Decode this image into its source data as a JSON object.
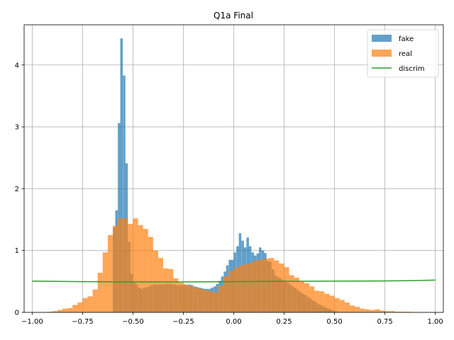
{
  "chart_data": {
    "type": "bar",
    "title": "Q1a Final",
    "xlabel": "",
    "ylabel": "",
    "xlim": [
      -1.04,
      1.04
    ],
    "ylim": [
      0,
      4.65
    ],
    "grid": true,
    "legend_position": "top-right",
    "xticks": [
      {
        "value": -1.0,
        "label": "−1.00"
      },
      {
        "value": -0.75,
        "label": "−0.75"
      },
      {
        "value": -0.5,
        "label": "−0.50"
      },
      {
        "value": -0.25,
        "label": "−0.25"
      },
      {
        "value": 0.0,
        "label": "0.00"
      },
      {
        "value": 0.25,
        "label": "0.25"
      },
      {
        "value": 0.5,
        "label": "0.50"
      },
      {
        "value": 0.75,
        "label": "0.75"
      },
      {
        "value": 1.0,
        "label": "1.00"
      }
    ],
    "yticks": [
      {
        "value": 0,
        "label": "0"
      },
      {
        "value": 1,
        "label": "1"
      },
      {
        "value": 2,
        "label": "2"
      },
      {
        "value": 3,
        "label": "3"
      },
      {
        "value": 4,
        "label": "4"
      }
    ],
    "series": [
      {
        "name": "fake",
        "kind": "histogram",
        "color": "#1f77b4",
        "opacity": 0.7,
        "bin_width": 0.0125,
        "bins": [
          [
            -0.6,
            1.37
          ],
          [
            -0.588,
            1.65
          ],
          [
            -0.575,
            3.06
          ],
          [
            -0.563,
            4.43
          ],
          [
            -0.55,
            3.83
          ],
          [
            -0.538,
            2.41
          ],
          [
            -0.525,
            1.14
          ],
          [
            -0.513,
            0.62
          ],
          [
            -0.5,
            0.5
          ],
          [
            -0.488,
            0.45
          ],
          [
            -0.475,
            0.4
          ],
          [
            -0.463,
            0.38
          ],
          [
            -0.45,
            0.4
          ],
          [
            -0.438,
            0.41
          ],
          [
            -0.425,
            0.42
          ],
          [
            -0.413,
            0.44
          ],
          [
            -0.4,
            0.45
          ],
          [
            -0.388,
            0.45
          ],
          [
            -0.375,
            0.45
          ],
          [
            -0.363,
            0.45
          ],
          [
            -0.35,
            0.45
          ],
          [
            -0.338,
            0.46
          ],
          [
            -0.325,
            0.46
          ],
          [
            -0.313,
            0.45
          ],
          [
            -0.3,
            0.45
          ],
          [
            -0.288,
            0.44
          ],
          [
            -0.275,
            0.44
          ],
          [
            -0.263,
            0.44
          ],
          [
            -0.25,
            0.45
          ],
          [
            -0.238,
            0.44
          ],
          [
            -0.225,
            0.45
          ],
          [
            -0.213,
            0.44
          ],
          [
            -0.2,
            0.42
          ],
          [
            -0.188,
            0.41
          ],
          [
            -0.175,
            0.4
          ],
          [
            -0.163,
            0.39
          ],
          [
            -0.15,
            0.38
          ],
          [
            -0.138,
            0.38
          ],
          [
            -0.125,
            0.38
          ],
          [
            -0.113,
            0.4
          ],
          [
            -0.1,
            0.42
          ],
          [
            -0.088,
            0.46
          ],
          [
            -0.075,
            0.51
          ],
          [
            -0.063,
            0.58
          ],
          [
            -0.05,
            0.66
          ],
          [
            -0.038,
            0.76
          ],
          [
            -0.025,
            0.85
          ],
          [
            -0.013,
            0.85
          ],
          [
            0.0,
            0.97
          ],
          [
            0.013,
            1.07
          ],
          [
            0.025,
            1.28
          ],
          [
            0.038,
            1.16
          ],
          [
            0.05,
            1.05
          ],
          [
            0.063,
            1.21
          ],
          [
            0.075,
            1.07
          ],
          [
            0.088,
            0.97
          ],
          [
            0.1,
            0.92
          ],
          [
            0.113,
            0.95
          ],
          [
            0.125,
            1.05
          ],
          [
            0.138,
            1.0
          ],
          [
            0.15,
            0.96
          ],
          [
            0.163,
            0.83
          ],
          [
            0.175,
            0.82
          ],
          [
            0.188,
            0.7
          ],
          [
            0.2,
            0.6
          ],
          [
            0.213,
            0.57
          ],
          [
            0.225,
            0.55
          ],
          [
            0.238,
            0.52
          ],
          [
            0.25,
            0.5
          ],
          [
            0.263,
            0.48
          ],
          [
            0.275,
            0.45
          ],
          [
            0.288,
            0.42
          ],
          [
            0.3,
            0.39
          ],
          [
            0.313,
            0.36
          ],
          [
            0.325,
            0.33
          ],
          [
            0.338,
            0.3
          ],
          [
            0.35,
            0.28
          ],
          [
            0.363,
            0.25
          ],
          [
            0.375,
            0.22
          ],
          [
            0.388,
            0.19
          ],
          [
            0.4,
            0.17
          ],
          [
            0.413,
            0.14
          ],
          [
            0.425,
            0.12
          ],
          [
            0.438,
            0.1
          ],
          [
            0.45,
            0.08
          ],
          [
            0.463,
            0.06
          ],
          [
            0.475,
            0.05
          ],
          [
            0.488,
            0.03
          ],
          [
            0.5,
            0.02
          ]
        ]
      },
      {
        "name": "real",
        "kind": "histogram",
        "color": "#ff7f0e",
        "opacity": 0.7,
        "bin_width": 0.025,
        "bins": [
          [
            -0.925,
            0.01
          ],
          [
            -0.9,
            0.02
          ],
          [
            -0.875,
            0.04
          ],
          [
            -0.85,
            0.06
          ],
          [
            -0.825,
            0.07
          ],
          [
            -0.8,
            0.12
          ],
          [
            -0.775,
            0.16
          ],
          [
            -0.75,
            0.23
          ],
          [
            -0.725,
            0.26
          ],
          [
            -0.7,
            0.37
          ],
          [
            -0.675,
            0.64
          ],
          [
            -0.65,
            0.97
          ],
          [
            -0.625,
            1.25
          ],
          [
            -0.6,
            1.4
          ],
          [
            -0.575,
            1.52
          ],
          [
            -0.55,
            1.52
          ],
          [
            -0.525,
            1.43
          ],
          [
            -0.5,
            1.52
          ],
          [
            -0.475,
            1.41
          ],
          [
            -0.45,
            1.35
          ],
          [
            -0.425,
            1.22
          ],
          [
            -0.4,
            1.0
          ],
          [
            -0.375,
            0.88
          ],
          [
            -0.35,
            0.71
          ],
          [
            -0.325,
            0.7
          ],
          [
            -0.3,
            0.55
          ],
          [
            -0.275,
            0.48
          ],
          [
            -0.25,
            0.45
          ],
          [
            -0.225,
            0.43
          ],
          [
            -0.2,
            0.4
          ],
          [
            -0.175,
            0.38
          ],
          [
            -0.15,
            0.36
          ],
          [
            -0.125,
            0.34
          ],
          [
            -0.1,
            0.32
          ],
          [
            -0.075,
            0.43
          ],
          [
            -0.05,
            0.58
          ],
          [
            -0.025,
            0.67
          ],
          [
            0.0,
            0.72
          ],
          [
            0.025,
            0.76
          ],
          [
            0.05,
            0.78
          ],
          [
            0.075,
            0.8
          ],
          [
            0.1,
            0.84
          ],
          [
            0.125,
            0.85
          ],
          [
            0.15,
            0.87
          ],
          [
            0.175,
            0.88
          ],
          [
            0.2,
            0.84
          ],
          [
            0.225,
            0.79
          ],
          [
            0.25,
            0.73
          ],
          [
            0.275,
            0.6
          ],
          [
            0.3,
            0.56
          ],
          [
            0.325,
            0.5
          ],
          [
            0.35,
            0.47
          ],
          [
            0.375,
            0.42
          ],
          [
            0.4,
            0.35
          ],
          [
            0.425,
            0.34
          ],
          [
            0.45,
            0.3
          ],
          [
            0.475,
            0.27
          ],
          [
            0.5,
            0.23
          ],
          [
            0.525,
            0.2
          ],
          [
            0.55,
            0.16
          ],
          [
            0.575,
            0.11
          ],
          [
            0.6,
            0.09
          ],
          [
            0.625,
            0.06
          ],
          [
            0.65,
            0.05
          ],
          [
            0.675,
            0.04
          ],
          [
            0.7,
            0.05
          ],
          [
            0.725,
            0.03
          ],
          [
            0.75,
            0.02
          ],
          [
            0.775,
            0.02
          ],
          [
            0.8,
            0.01
          ],
          [
            0.825,
            0.01
          ],
          [
            0.85,
            0.01
          ]
        ]
      },
      {
        "name": "discrim",
        "kind": "line",
        "color": "#2ca02c",
        "x": [
          -1.0,
          -0.75,
          -0.5,
          -0.25,
          0.0,
          0.25,
          0.5,
          0.75,
          0.9,
          1.0
        ],
        "y": [
          0.505,
          0.497,
          0.492,
          0.492,
          0.497,
          0.503,
          0.506,
          0.508,
          0.514,
          0.522
        ]
      }
    ]
  }
}
